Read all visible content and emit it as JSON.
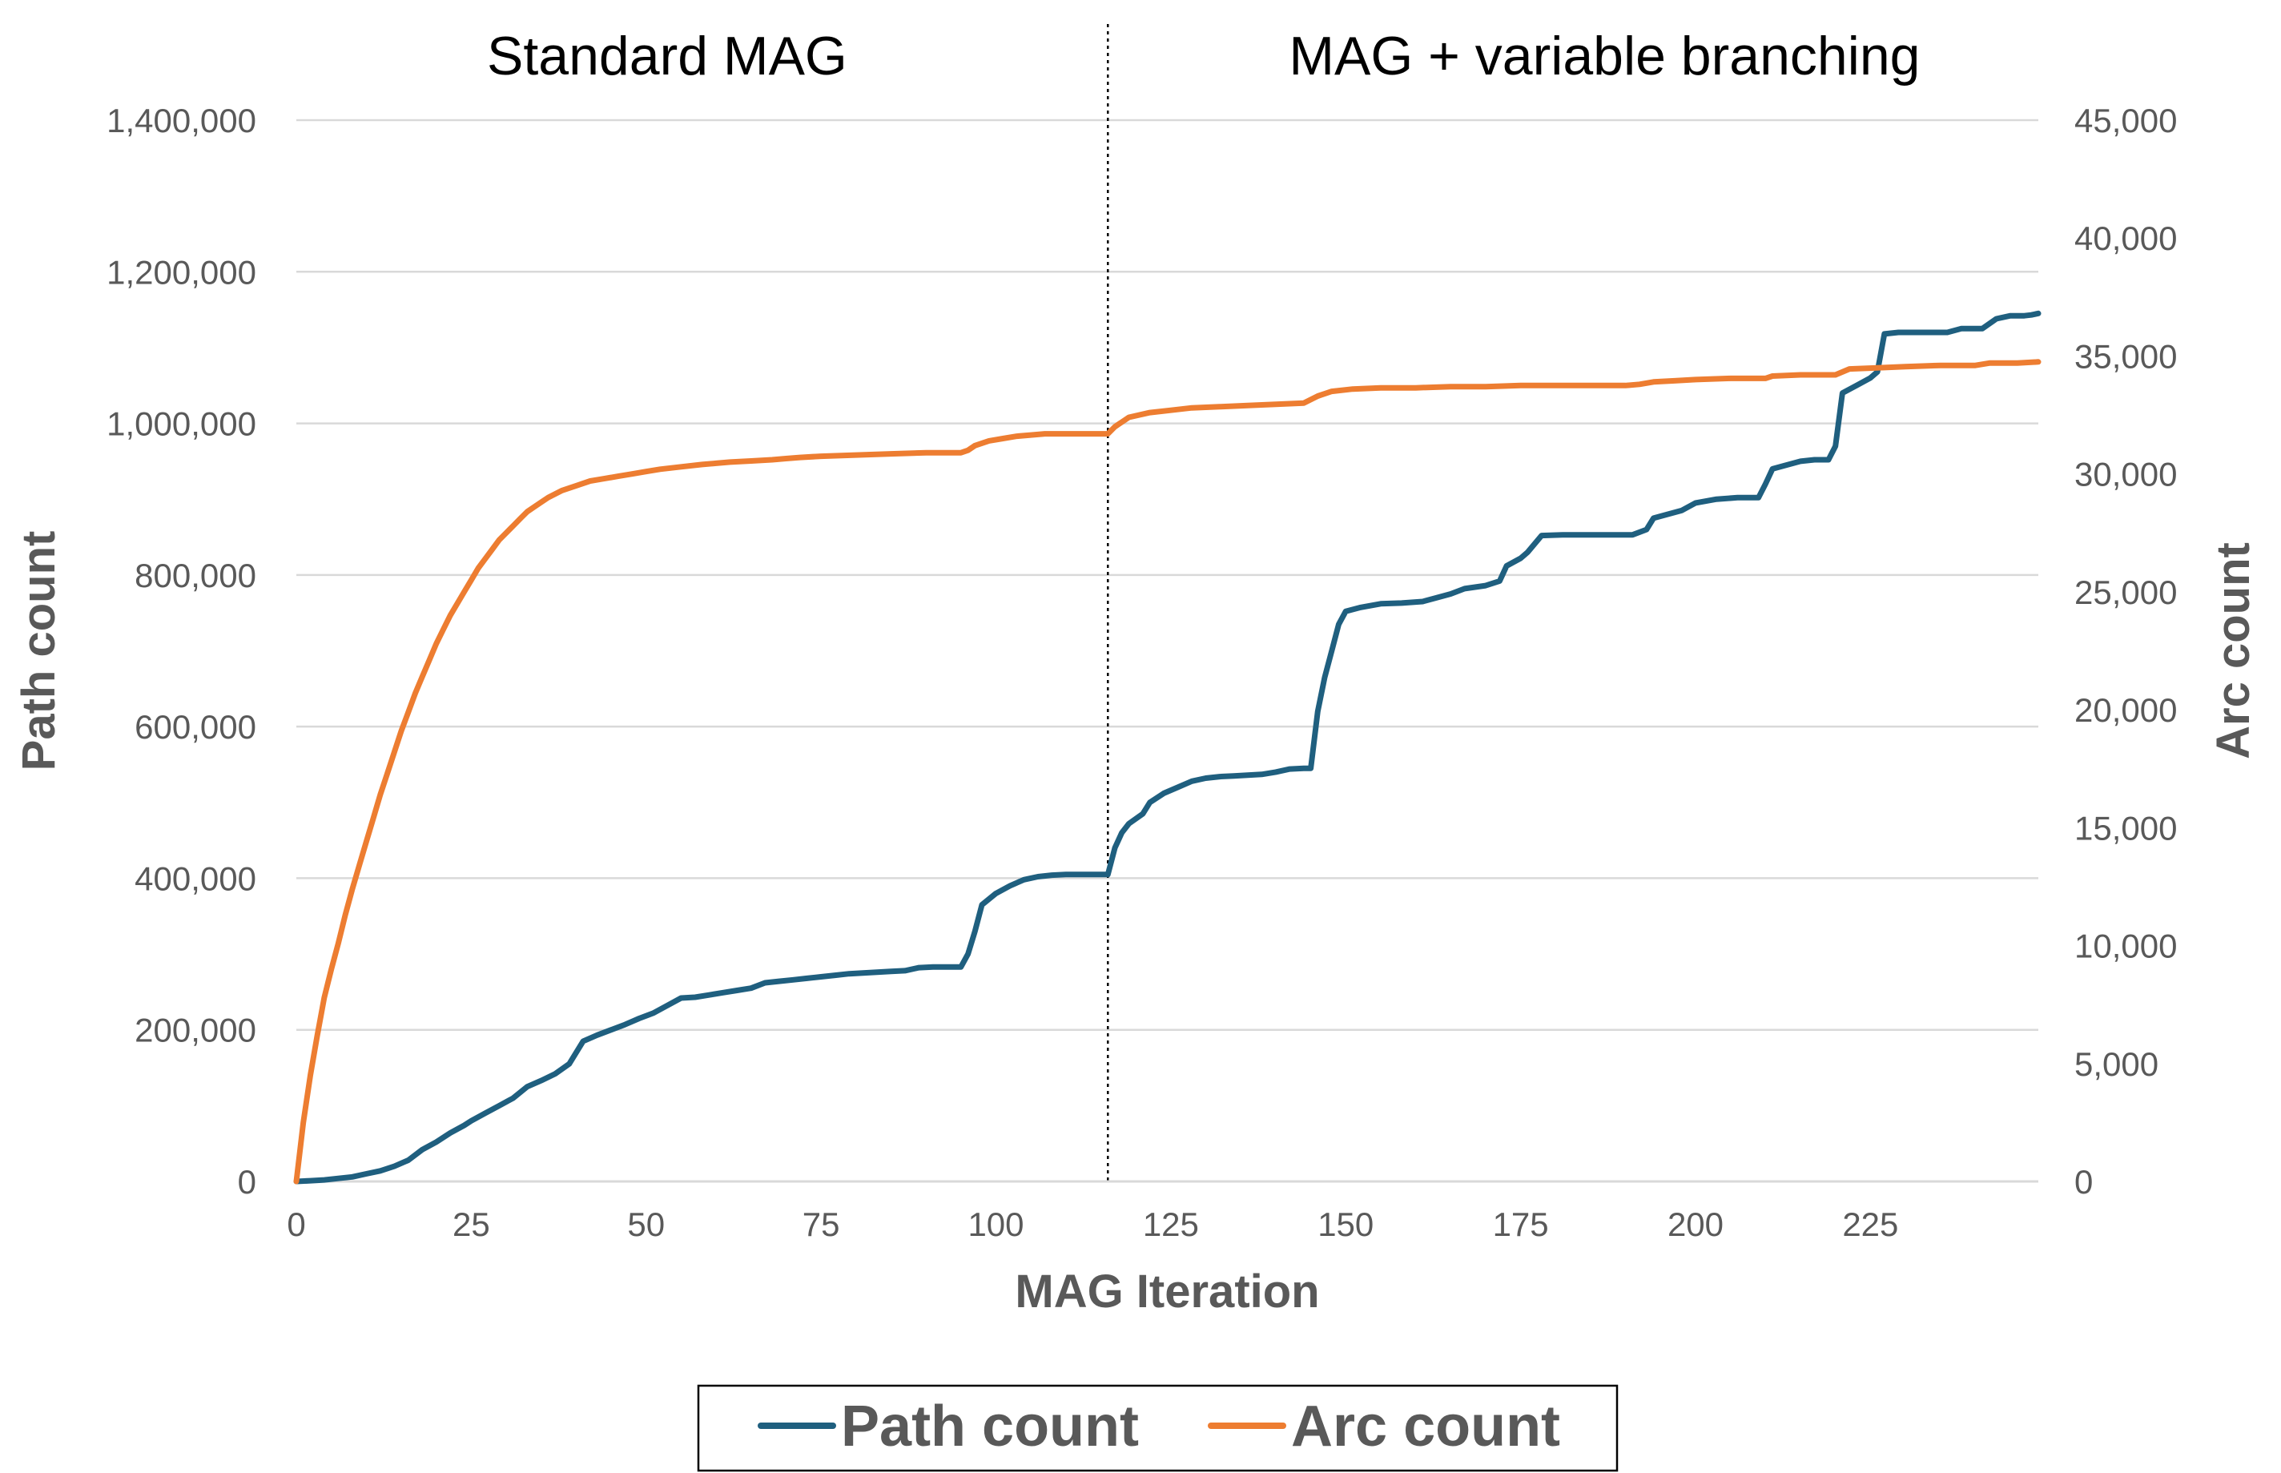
{
  "chart_data": {
    "type": "line",
    "title": "",
    "xlabel": "MAG Iteration",
    "ylabel": "Path count",
    "y2label": "Arc count",
    "xlim": [
      0,
      249
    ],
    "ylim": [
      0,
      1400000
    ],
    "y2lim": [
      0,
      45000
    ],
    "x_ticks": [
      0,
      25,
      50,
      75,
      100,
      125,
      150,
      175,
      200,
      225
    ],
    "y_ticks": [
      0,
      200000,
      400000,
      600000,
      800000,
      1000000,
      1200000,
      1400000
    ],
    "y2_ticks": [
      0,
      5000,
      10000,
      15000,
      20000,
      25000,
      30000,
      35000,
      40000,
      45000
    ],
    "x_tick_labels": [
      "0",
      "25",
      "50",
      "75",
      "100",
      "125",
      "150",
      "175",
      "200",
      "225"
    ],
    "y_tick_labels": [
      "0",
      "200,000",
      "400,000",
      "600,000",
      "800,000",
      "1,000,000",
      "1,200,000",
      "1,400,000"
    ],
    "y2_tick_labels": [
      "0",
      "5,000",
      "10,000",
      "15,000",
      "20,000",
      "25,000",
      "30,000",
      "35,000",
      "40,000",
      "45,000"
    ],
    "grid": true,
    "legend_position": "bottom",
    "divider_x": 116,
    "annotations": [
      {
        "text": "Standard MAG",
        "x": 53
      },
      {
        "text": "MAG + variable branching",
        "x": 187
      }
    ],
    "series": [
      {
        "name": "Path count",
        "axis": "left",
        "color": "#1f5f7f",
        "points": [
          [
            0,
            0
          ],
          [
            2,
            1000
          ],
          [
            4,
            2000
          ],
          [
            6,
            4000
          ],
          [
            8,
            6000
          ],
          [
            10,
            10000
          ],
          [
            12,
            14000
          ],
          [
            14,
            20000
          ],
          [
            16,
            28000
          ],
          [
            18,
            42000
          ],
          [
            20,
            52000
          ],
          [
            22,
            64000
          ],
          [
            24,
            74000
          ],
          [
            25,
            80000
          ],
          [
            27,
            90000
          ],
          [
            29,
            100000
          ],
          [
            31,
            110000
          ],
          [
            33,
            125000
          ],
          [
            35,
            133000
          ],
          [
            37,
            142000
          ],
          [
            39,
            155000
          ],
          [
            41,
            185000
          ],
          [
            43,
            193000
          ],
          [
            45,
            200000
          ],
          [
            47,
            207000
          ],
          [
            49,
            215000
          ],
          [
            51,
            222000
          ],
          [
            53,
            232000
          ],
          [
            55,
            242000
          ],
          [
            57,
            243000
          ],
          [
            59,
            246000
          ],
          [
            61,
            249000
          ],
          [
            63,
            252000
          ],
          [
            65,
            255000
          ],
          [
            67,
            262000
          ],
          [
            69,
            264000
          ],
          [
            71,
            266000
          ],
          [
            73,
            268000
          ],
          [
            75,
            270000
          ],
          [
            77,
            272000
          ],
          [
            79,
            274000
          ],
          [
            81,
            275000
          ],
          [
            83,
            276000
          ],
          [
            85,
            277000
          ],
          [
            87,
            278000
          ],
          [
            89,
            282000
          ],
          [
            91,
            283000
          ],
          [
            93,
            283000
          ],
          [
            95,
            283000
          ],
          [
            96,
            300000
          ],
          [
            97,
            330000
          ],
          [
            98,
            365000
          ],
          [
            100,
            380000
          ],
          [
            102,
            390000
          ],
          [
            104,
            398000
          ],
          [
            106,
            402000
          ],
          [
            108,
            404000
          ],
          [
            110,
            405000
          ],
          [
            112,
            405000
          ],
          [
            114,
            405000
          ],
          [
            116,
            405000
          ],
          [
            117,
            440000
          ],
          [
            118,
            460000
          ],
          [
            119,
            472000
          ],
          [
            121,
            485000
          ],
          [
            122,
            500000
          ],
          [
            124,
            512000
          ],
          [
            126,
            520000
          ],
          [
            128,
            528000
          ],
          [
            130,
            532000
          ],
          [
            132,
            534000
          ],
          [
            134,
            535000
          ],
          [
            136,
            536000
          ],
          [
            138,
            537000
          ],
          [
            140,
            540000
          ],
          [
            142,
            544000
          ],
          [
            144,
            545000
          ],
          [
            145,
            545000
          ],
          [
            146,
            620000
          ],
          [
            147,
            665000
          ],
          [
            148,
            700000
          ],
          [
            149,
            735000
          ],
          [
            150,
            752000
          ],
          [
            152,
            757000
          ],
          [
            155,
            762000
          ],
          [
            158,
            763000
          ],
          [
            161,
            765000
          ],
          [
            163,
            770000
          ],
          [
            165,
            775000
          ],
          [
            167,
            782000
          ],
          [
            170,
            786000
          ],
          [
            172,
            792000
          ],
          [
            173,
            812000
          ],
          [
            175,
            822000
          ],
          [
            176,
            830000
          ],
          [
            178,
            852000
          ],
          [
            181,
            853000
          ],
          [
            186,
            853000
          ],
          [
            191,
            853000
          ],
          [
            193,
            860000
          ],
          [
            194,
            875000
          ],
          [
            196,
            880000
          ],
          [
            198,
            885000
          ],
          [
            200,
            895000
          ],
          [
            203,
            900000
          ],
          [
            206,
            902000
          ],
          [
            209,
            902000
          ],
          [
            210,
            920000
          ],
          [
            211,
            940000
          ],
          [
            213,
            945000
          ],
          [
            215,
            950000
          ],
          [
            217,
            952000
          ],
          [
            219,
            952000
          ],
          [
            220,
            970000
          ],
          [
            221,
            1040000
          ],
          [
            223,
            1050000
          ],
          [
            225,
            1060000
          ],
          [
            226,
            1068000
          ],
          [
            227,
            1118000
          ],
          [
            229,
            1120000
          ],
          [
            233,
            1120000
          ],
          [
            236,
            1120000
          ],
          [
            238,
            1125000
          ],
          [
            241,
            1125000
          ],
          [
            243,
            1138000
          ],
          [
            245,
            1142000
          ],
          [
            247,
            1142000
          ],
          [
            248,
            1143000
          ],
          [
            249,
            1145000
          ]
        ]
      },
      {
        "name": "Arc count",
        "axis": "right",
        "color": "#ed7d31",
        "points": [
          [
            0,
            0
          ],
          [
            1,
            2500
          ],
          [
            2,
            4500
          ],
          [
            3,
            6200
          ],
          [
            4,
            7800
          ],
          [
            5,
            9000
          ],
          [
            6,
            10100
          ],
          [
            7,
            11300
          ],
          [
            8,
            12400
          ],
          [
            9,
            13400
          ],
          [
            10,
            14400
          ],
          [
            11,
            15400
          ],
          [
            12,
            16400
          ],
          [
            13,
            17300
          ],
          [
            14,
            18200
          ],
          [
            15,
            19100
          ],
          [
            16,
            19900
          ],
          [
            17,
            20700
          ],
          [
            18,
            21400
          ],
          [
            19,
            22100
          ],
          [
            20,
            22800
          ],
          [
            21,
            23400
          ],
          [
            22,
            24000
          ],
          [
            23,
            24500
          ],
          [
            24,
            25000
          ],
          [
            25,
            25500
          ],
          [
            26,
            26000
          ],
          [
            27,
            26400
          ],
          [
            28,
            26800
          ],
          [
            29,
            27200
          ],
          [
            30,
            27500
          ],
          [
            31,
            27800
          ],
          [
            32,
            28100
          ],
          [
            33,
            28400
          ],
          [
            34,
            28600
          ],
          [
            35,
            28800
          ],
          [
            36,
            29000
          ],
          [
            38,
            29300
          ],
          [
            40,
            29500
          ],
          [
            42,
            29700
          ],
          [
            44,
            29800
          ],
          [
            46,
            29900
          ],
          [
            48,
            30000
          ],
          [
            50,
            30100
          ],
          [
            52,
            30200
          ],
          [
            55,
            30300
          ],
          [
            58,
            30400
          ],
          [
            60,
            30450
          ],
          [
            62,
            30500
          ],
          [
            65,
            30550
          ],
          [
            68,
            30600
          ],
          [
            70,
            30650
          ],
          [
            72,
            30700
          ],
          [
            75,
            30750
          ],
          [
            80,
            30800
          ],
          [
            85,
            30850
          ],
          [
            90,
            30900
          ],
          [
            95,
            30900
          ],
          [
            96,
            31000
          ],
          [
            97,
            31200
          ],
          [
            99,
            31400
          ],
          [
            101,
            31500
          ],
          [
            103,
            31600
          ],
          [
            105,
            31650
          ],
          [
            107,
            31700
          ],
          [
            110,
            31700
          ],
          [
            113,
            31700
          ],
          [
            116,
            31700
          ],
          [
            117,
            32000
          ],
          [
            119,
            32400
          ],
          [
            122,
            32600
          ],
          [
            125,
            32700
          ],
          [
            128,
            32800
          ],
          [
            132,
            32850
          ],
          [
            136,
            32900
          ],
          [
            140,
            32950
          ],
          [
            144,
            33000
          ],
          [
            146,
            33300
          ],
          [
            148,
            33500
          ],
          [
            151,
            33600
          ],
          [
            155,
            33650
          ],
          [
            160,
            33650
          ],
          [
            165,
            33700
          ],
          [
            170,
            33700
          ],
          [
            175,
            33750
          ],
          [
            180,
            33750
          ],
          [
            185,
            33750
          ],
          [
            190,
            33750
          ],
          [
            192,
            33800
          ],
          [
            194,
            33900
          ],
          [
            197,
            33950
          ],
          [
            200,
            34000
          ],
          [
            205,
            34050
          ],
          [
            210,
            34050
          ],
          [
            211,
            34150
          ],
          [
            215,
            34200
          ],
          [
            220,
            34200
          ],
          [
            222,
            34450
          ],
          [
            226,
            34500
          ],
          [
            230,
            34550
          ],
          [
            235,
            34600
          ],
          [
            240,
            34600
          ],
          [
            242,
            34700
          ],
          [
            246,
            34700
          ],
          [
            249,
            34750
          ]
        ]
      }
    ]
  }
}
